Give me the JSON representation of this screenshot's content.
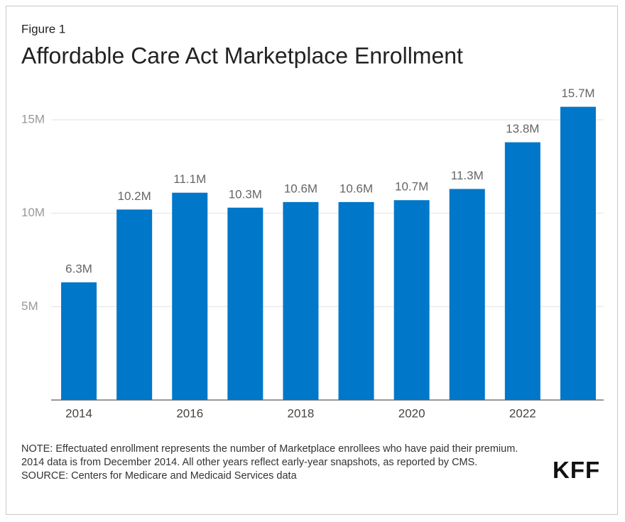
{
  "chart_data": {
    "type": "bar",
    "figure_label": "Figure 1",
    "title": "Affordable Care Act Marketplace Enrollment",
    "categories": [
      "2014",
      null,
      "2016",
      null,
      "2018",
      null,
      "2020",
      null,
      "2022",
      null
    ],
    "values": [
      6.3,
      10.2,
      11.1,
      10.3,
      10.6,
      10.6,
      10.7,
      11.3,
      13.8,
      15.7
    ],
    "value_labels": [
      "6.3M",
      "10.2M",
      "11.1M",
      "10.3M",
      "10.6M",
      "10.6M",
      "10.7M",
      "11.3M",
      "13.8M",
      "15.7M"
    ],
    "color": "#0077c8",
    "ylim": [
      0,
      16.5
    ],
    "yticks": [
      {
        "value": 5,
        "label": "5M"
      },
      {
        "value": 10,
        "label": "10M"
      },
      {
        "value": 15,
        "label": "15M"
      }
    ],
    "grid": true
  },
  "footer": {
    "note": "NOTE: Effectuated enrollment represents the number of Marketplace enrollees who have paid their premium. 2014 data is from December 2014. All other years reflect early-year snapshots, as reported by CMS.",
    "source": "SOURCE: Centers for Medicare and Medicaid Services data",
    "logo": "KFF"
  }
}
